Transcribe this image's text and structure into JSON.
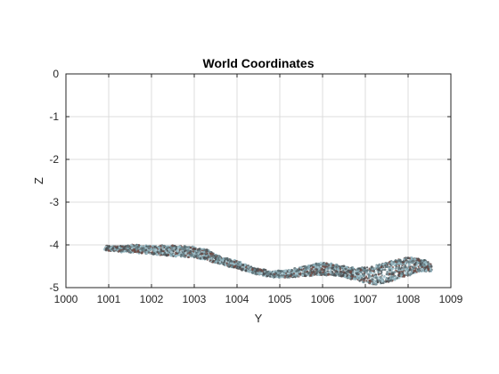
{
  "colors": {
    "background": "#ffffff",
    "axes": "#262626",
    "grid": "#dcdcdc",
    "points": [
      "#6f8b93",
      "#8fb3bd",
      "#4a4f52",
      "#6e4a44",
      "#a9c9d2",
      "#5c6e73"
    ]
  },
  "chart_data": {
    "type": "scatter",
    "title": "World Coordinates",
    "xlabel": "Y",
    "ylabel": "Z",
    "xlim": [
      1000,
      1009
    ],
    "ylim": [
      -5,
      0
    ],
    "xticks": [
      1000,
      1001,
      1002,
      1003,
      1004,
      1005,
      1006,
      1007,
      1008,
      1009
    ],
    "yticks": [
      0,
      -1,
      -2,
      -3,
      -4,
      -5
    ],
    "xtick_labels": [
      "1000",
      "1001",
      "1002",
      "1003",
      "1004",
      "1005",
      "1006",
      "1007",
      "1008",
      "1009"
    ],
    "ytick_labels": [
      "0",
      "-1",
      "-2",
      "-3",
      "-4",
      "-5"
    ],
    "grid": true,
    "box": true,
    "profile": [
      {
        "x": 1000.9,
        "z_top": -4.02,
        "z_bottom": -4.12
      },
      {
        "x": 1001.2,
        "z_top": -4.04,
        "z_bottom": -4.15
      },
      {
        "x": 1001.6,
        "z_top": -4.0,
        "z_bottom": -4.18
      },
      {
        "x": 1002.0,
        "z_top": -4.03,
        "z_bottom": -4.22
      },
      {
        "x": 1002.5,
        "z_top": -4.01,
        "z_bottom": -4.26
      },
      {
        "x": 1003.0,
        "z_top": -4.05,
        "z_bottom": -4.3
      },
      {
        "x": 1003.3,
        "z_top": -4.12,
        "z_bottom": -4.36
      },
      {
        "x": 1003.6,
        "z_top": -4.28,
        "z_bottom": -4.44
      },
      {
        "x": 1004.0,
        "z_top": -4.38,
        "z_bottom": -4.55
      },
      {
        "x": 1004.4,
        "z_top": -4.55,
        "z_bottom": -4.67
      },
      {
        "x": 1004.8,
        "z_top": -4.62,
        "z_bottom": -4.75
      },
      {
        "x": 1005.2,
        "z_top": -4.6,
        "z_bottom": -4.76
      },
      {
        "x": 1005.6,
        "z_top": -4.5,
        "z_bottom": -4.73
      },
      {
        "x": 1006.0,
        "z_top": -4.42,
        "z_bottom": -4.7
      },
      {
        "x": 1006.4,
        "z_top": -4.48,
        "z_bottom": -4.72
      },
      {
        "x": 1006.8,
        "z_top": -4.55,
        "z_bottom": -4.82
      },
      {
        "x": 1007.2,
        "z_top": -4.5,
        "z_bottom": -4.95
      },
      {
        "x": 1007.6,
        "z_top": -4.38,
        "z_bottom": -4.85
      },
      {
        "x": 1008.0,
        "z_top": -4.3,
        "z_bottom": -4.72
      },
      {
        "x": 1008.3,
        "z_top": -4.32,
        "z_bottom": -4.62
      },
      {
        "x": 1008.55,
        "z_top": -4.45,
        "z_bottom": -4.62
      }
    ]
  }
}
